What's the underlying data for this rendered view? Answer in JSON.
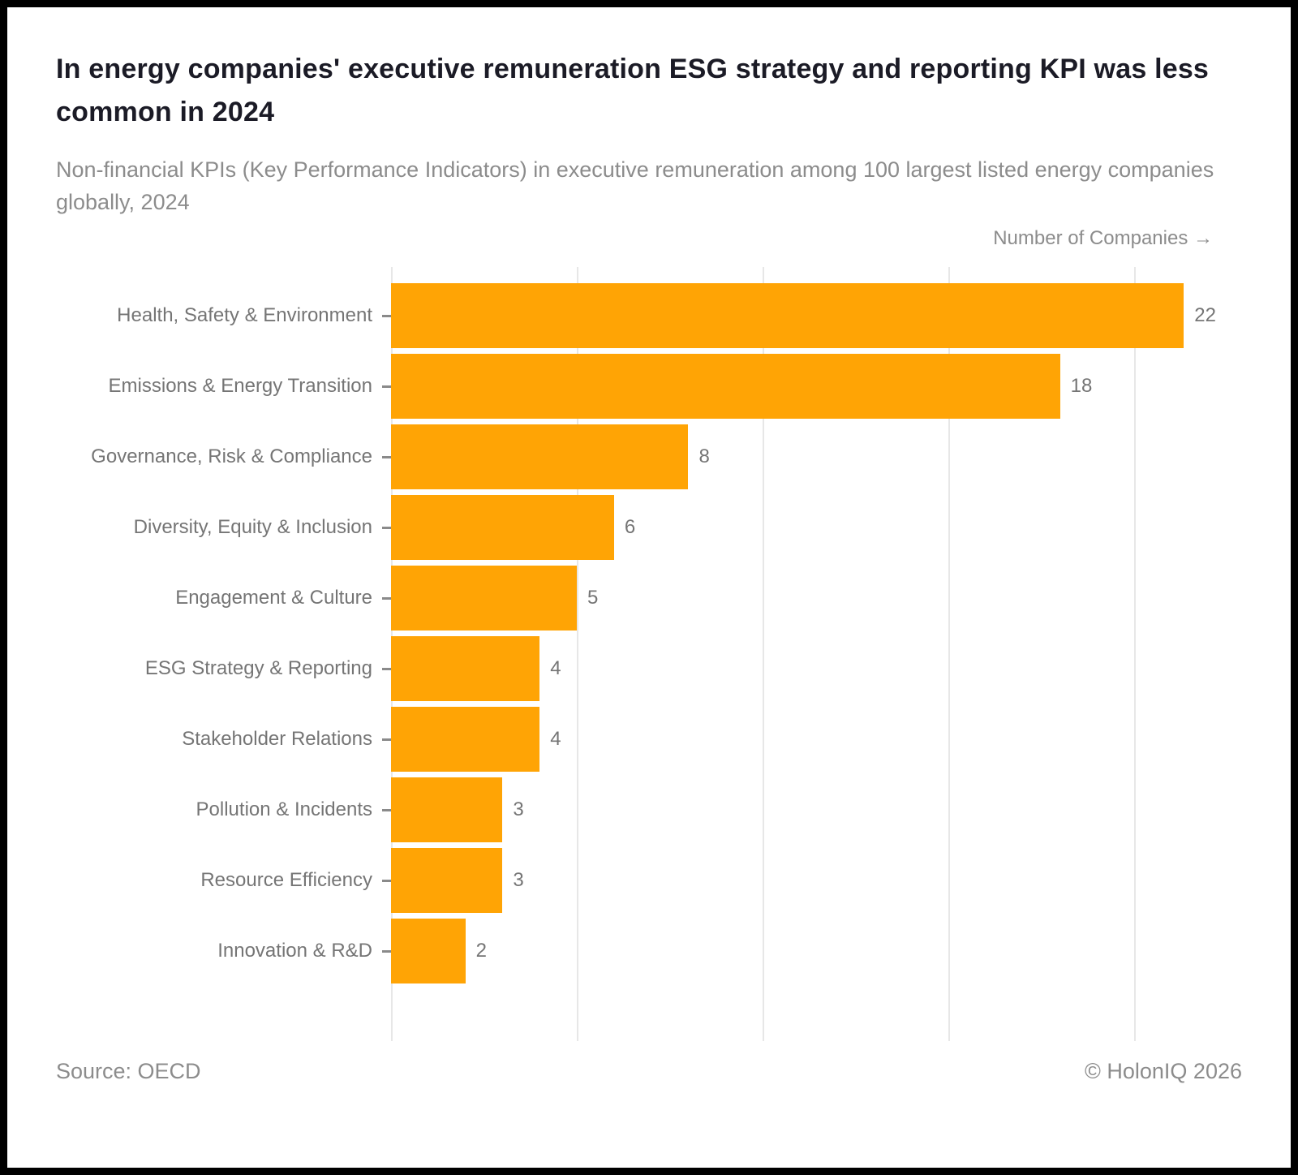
{
  "header": {
    "title": "In energy companies' executive remuneration ESG strategy and reporting KPI was less common in 2024",
    "subtitle": "Non-financial KPIs (Key Performance Indicators) in executive remuneration among 100 largest listed energy companies globally, 2024"
  },
  "axis_label": "Number of Companies →",
  "footer": {
    "source": "Source: OECD",
    "copyright": "© HolonIQ 2026"
  },
  "colors": {
    "bar": "#ffa405",
    "grid": "#e7e7e7",
    "label": "#757575",
    "subtitle": "#8c8c8c",
    "title": "#1b1b26"
  },
  "chart_data": {
    "type": "bar",
    "orientation": "horizontal",
    "title": "In energy companies' executive remuneration ESG strategy and reporting KPI was less common in 2024",
    "xlabel": "Number of Companies",
    "ylabel": "",
    "categories": [
      "Health, Safety & Environment",
      "Emissions & Energy Transition",
      "Governance, Risk & Compliance",
      "Diversity, Equity & Inclusion",
      "Engagement & Culture",
      "ESG Strategy & Reporting",
      "Stakeholder Relations",
      "Pollution & Incidents",
      "Resource Efficiency",
      "Innovation & R&D"
    ],
    "values": [
      22,
      18,
      8,
      6,
      5,
      4,
      4,
      3,
      3,
      2
    ],
    "xlim": [
      0,
      22.2
    ],
    "gridline_values": [
      0,
      5,
      10,
      15,
      20
    ],
    "grid": true,
    "legend": false,
    "value_labels_shown": true,
    "x_tick_labels_shown": false
  }
}
